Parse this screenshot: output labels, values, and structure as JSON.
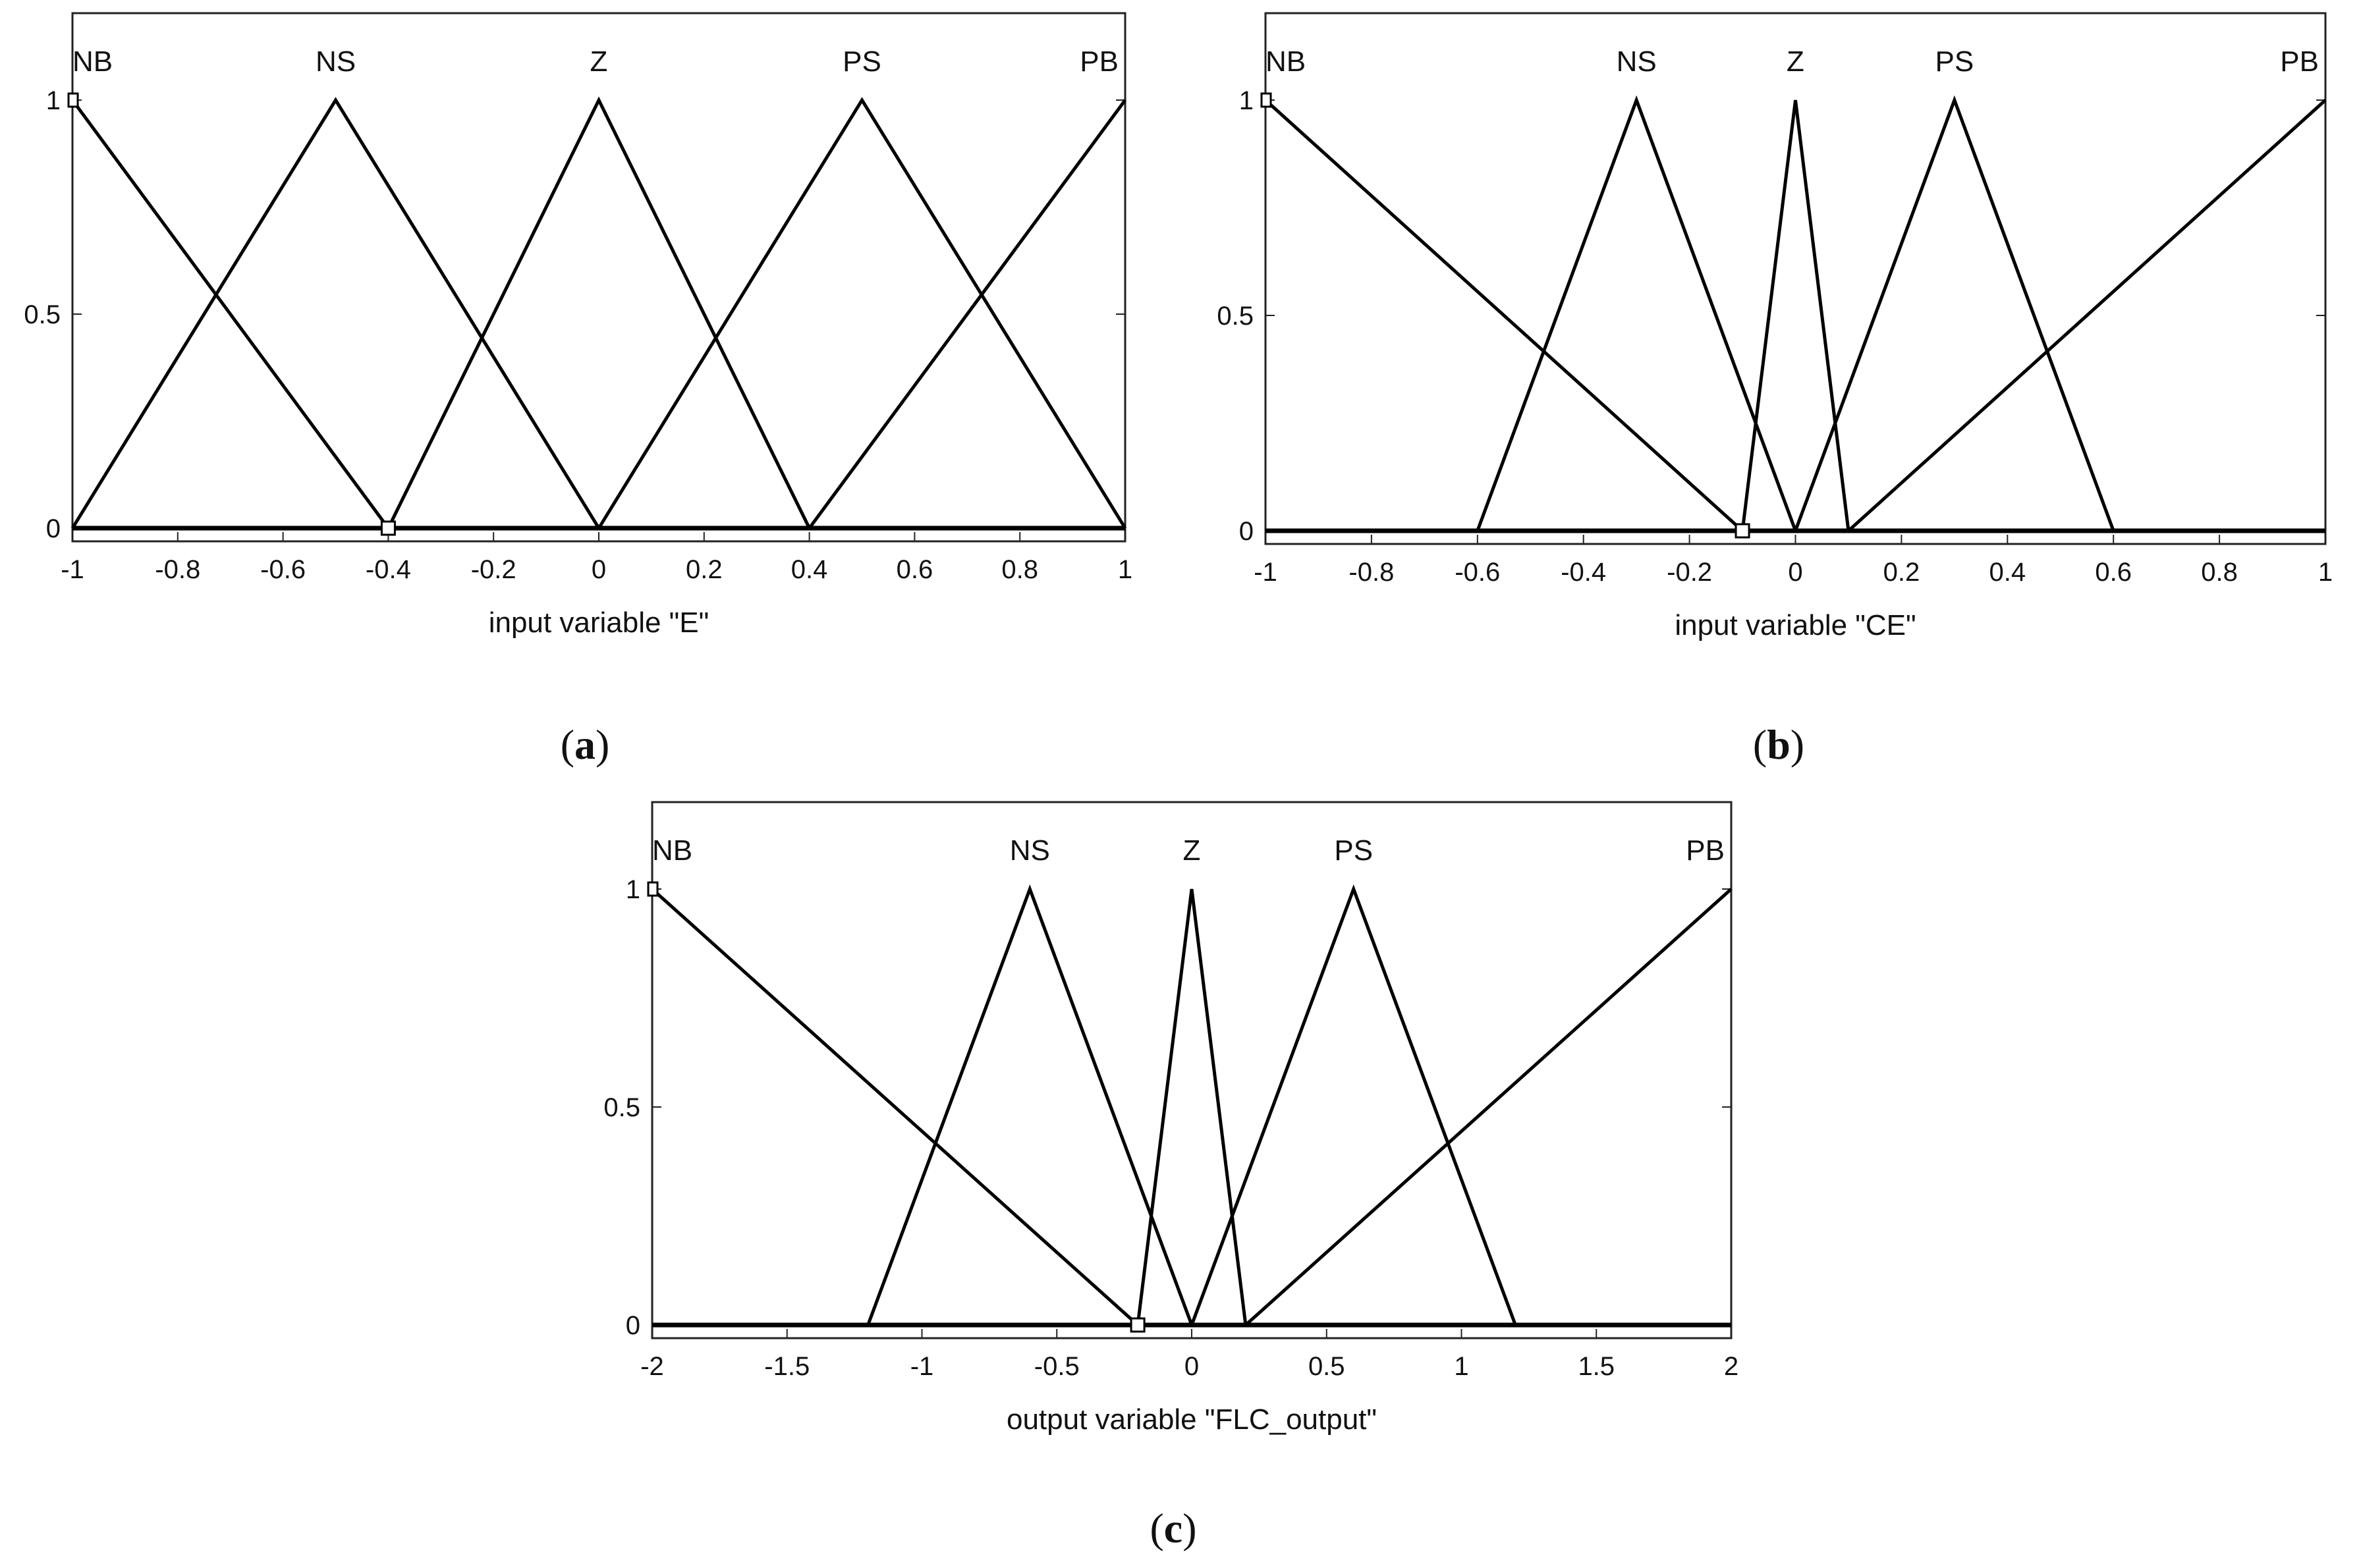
{
  "chart_data": [
    {
      "type": "line",
      "panel": "a",
      "xlabel": "input variable \"E\"",
      "xlim": [
        -1,
        1
      ],
      "ylim": [
        0,
        1
      ],
      "xticks": [
        "-1",
        "-0.8",
        "-0.6",
        "-0.4",
        "-0.2",
        "0",
        "0.2",
        "0.4",
        "0.6",
        "0.8",
        "1"
      ],
      "yticks": [
        "0",
        "0.5",
        "1"
      ],
      "series": [
        {
          "name": "NB",
          "x": [
            -1,
            -0.4
          ],
          "y": [
            1,
            0
          ]
        },
        {
          "name": "NS",
          "x": [
            -1,
            -0.5,
            0
          ],
          "y": [
            0,
            1,
            0
          ]
        },
        {
          "name": "Z",
          "x": [
            -0.4,
            0,
            0.4
          ],
          "y": [
            0,
            1,
            0
          ]
        },
        {
          "name": "PS",
          "x": [
            0,
            0.5,
            1
          ],
          "y": [
            0,
            1,
            0
          ]
        },
        {
          "name": "PB",
          "x": [
            0.4,
            1
          ],
          "y": [
            0,
            1
          ]
        }
      ]
    },
    {
      "type": "line",
      "panel": "b",
      "xlabel": "input variable \"CE\"",
      "xlim": [
        -1,
        1
      ],
      "ylim": [
        0,
        1
      ],
      "xticks": [
        "-1",
        "-0.8",
        "-0.6",
        "-0.4",
        "-0.2",
        "0",
        "0.2",
        "0.4",
        "0.6",
        "0.8",
        "1"
      ],
      "yticks": [
        "0",
        "0.5",
        "1"
      ],
      "series": [
        {
          "name": "NB",
          "x": [
            -1,
            -0.1
          ],
          "y": [
            1,
            0
          ]
        },
        {
          "name": "NS",
          "x": [
            -0.6,
            -0.3,
            0
          ],
          "y": [
            0,
            1,
            0
          ]
        },
        {
          "name": "Z",
          "x": [
            -0.1,
            0,
            0.1
          ],
          "y": [
            0,
            1,
            0
          ]
        },
        {
          "name": "PS",
          "x": [
            0,
            0.3,
            0.6
          ],
          "y": [
            0,
            1,
            0
          ]
        },
        {
          "name": "PB",
          "x": [
            0.1,
            1
          ],
          "y": [
            0,
            1
          ]
        }
      ]
    },
    {
      "type": "line",
      "panel": "c",
      "xlabel": "output variable \"FLC_output\"",
      "xlim": [
        -2,
        2
      ],
      "ylim": [
        0,
        1
      ],
      "xticks": [
        "-2",
        "-1.5",
        "-1",
        "-0.5",
        "0",
        "0.5",
        "1",
        "1.5",
        "2"
      ],
      "yticks": [
        "0",
        "0.5",
        "1"
      ],
      "series": [
        {
          "name": "NB",
          "x": [
            -2,
            -0.2
          ],
          "y": [
            1,
            0
          ]
        },
        {
          "name": "NS",
          "x": [
            -1.2,
            -0.6,
            0
          ],
          "y": [
            0,
            1,
            0
          ]
        },
        {
          "name": "Z",
          "x": [
            -0.2,
            0,
            0.2
          ],
          "y": [
            0,
            1,
            0
          ]
        },
        {
          "name": "PS",
          "x": [
            0,
            0.6,
            1.2
          ],
          "y": [
            0,
            1,
            0
          ]
        },
        {
          "name": "PB",
          "x": [
            0.2,
            2
          ],
          "y": [
            0,
            1
          ]
        }
      ]
    }
  ],
  "panel_labels": [
    "a",
    "b",
    "c"
  ]
}
